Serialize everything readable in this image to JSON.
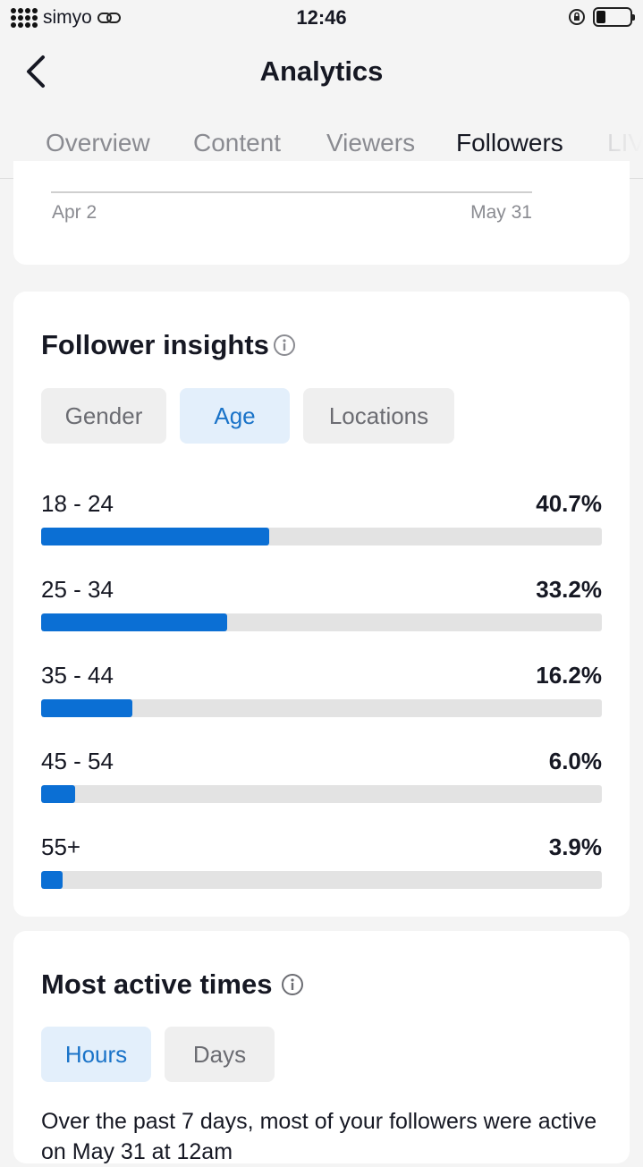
{
  "status_bar": {
    "carrier": "simyo",
    "time": "12:46"
  },
  "nav": {
    "title": "Analytics"
  },
  "tabs": [
    {
      "label": "Overview"
    },
    {
      "label": "Content"
    },
    {
      "label": "Viewers"
    },
    {
      "label": "Followers",
      "active": true
    },
    {
      "label": "LIVE"
    }
  ],
  "trend_chart": {
    "x_start": "Apr 2",
    "x_end": "May 31"
  },
  "follower_insights": {
    "title": "Follower insights",
    "filters": [
      {
        "label": "Gender",
        "active": false
      },
      {
        "label": "Age",
        "active": true
      },
      {
        "label": "Locations",
        "active": false
      }
    ],
    "age_groups": [
      {
        "label": "18 - 24",
        "percent_text": "40.7%",
        "value": 40.7
      },
      {
        "label": "25 - 34",
        "percent_text": "33.2%",
        "value": 33.2
      },
      {
        "label": "35 - 44",
        "percent_text": "16.2%",
        "value": 16.2
      },
      {
        "label": "45 - 54",
        "percent_text": "6.0%",
        "value": 6.0
      },
      {
        "label": "55+",
        "percent_text": "3.9%",
        "value": 3.9
      }
    ]
  },
  "most_active_times": {
    "title": "Most active times",
    "filters": [
      {
        "label": "Hours",
        "active": true
      },
      {
        "label": "Days",
        "active": false
      }
    ],
    "description": "Over the past 7 days, most of your followers were active on May 31 at 12am"
  },
  "colors": {
    "accent": "#0b6fd4",
    "chip_active_bg": "#e3effb",
    "track": "#e3e3e3"
  },
  "scale": {
    "max_percent": 100
  }
}
